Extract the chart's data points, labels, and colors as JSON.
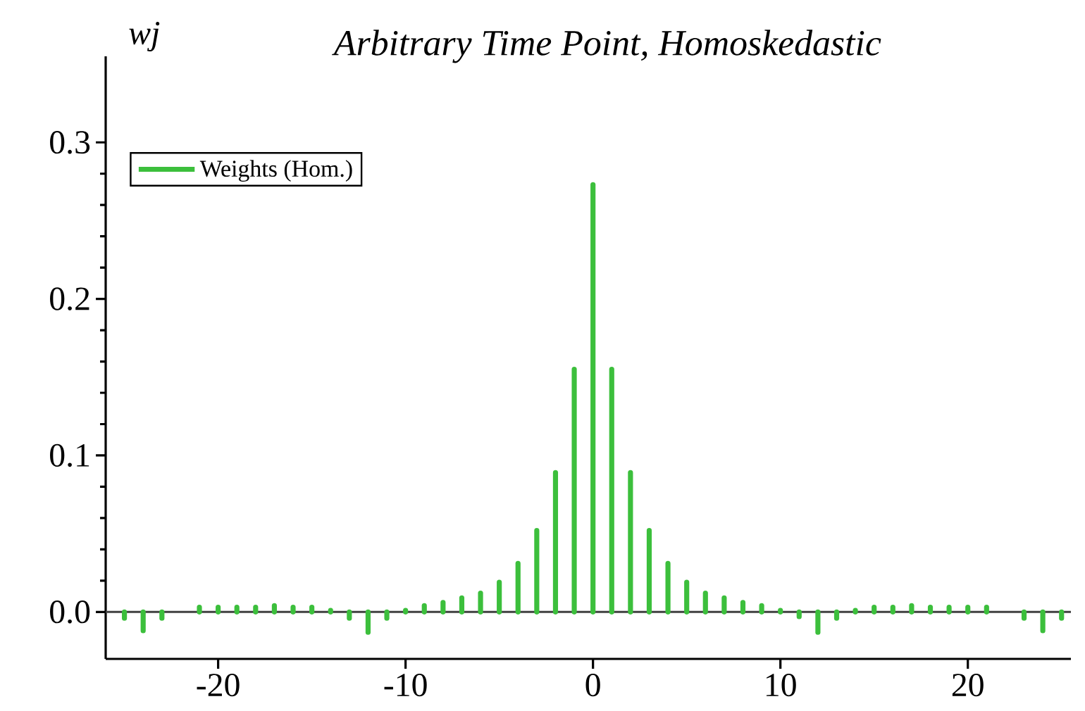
{
  "chart_data": {
    "type": "bar",
    "title": "Arbitrary Time Point, Homoskedastic",
    "ylabel": "wj",
    "x": [
      -25,
      -24,
      -23,
      -22,
      -21,
      -20,
      -19,
      -18,
      -17,
      -16,
      -15,
      -14,
      -13,
      -12,
      -11,
      -10,
      -9,
      -8,
      -7,
      -6,
      -5,
      -4,
      -3,
      -2,
      -1,
      0,
      1,
      2,
      3,
      4,
      5,
      6,
      7,
      8,
      9,
      10,
      11,
      12,
      13,
      14,
      15,
      16,
      17,
      18,
      19,
      20,
      21,
      22,
      23,
      24,
      25
    ],
    "series": [
      {
        "name": "Weights (Hom.)",
        "color": "#3cbf3c",
        "values": [
          -0.004,
          -0.012,
          -0.004,
          null,
          0.003,
          0.003,
          0.003,
          0.003,
          0.004,
          0.003,
          0.003,
          0.001,
          -0.004,
          -0.013,
          -0.004,
          0.001,
          0.004,
          0.006,
          0.009,
          0.012,
          0.019,
          0.031,
          0.052,
          0.089,
          0.155,
          0.273,
          0.155,
          0.089,
          0.052,
          0.031,
          0.019,
          0.012,
          0.009,
          0.006,
          0.004,
          0.001,
          -0.003,
          -0.013,
          -0.004,
          0.001,
          0.003,
          0.003,
          0.004,
          0.003,
          0.003,
          0.003,
          0.003,
          null,
          -0.004,
          -0.012,
          -0.004
        ]
      }
    ],
    "xlim": [
      -26,
      25.5
    ],
    "ylim": [
      -0.03,
      0.355
    ],
    "xticks": [
      -20,
      -10,
      0,
      10,
      20
    ],
    "yticks": [
      {
        "value": 0,
        "label": "0.0"
      },
      0.1,
      0.2,
      0.3
    ],
    "ref_lines": [
      {
        "axis": "y",
        "value": 0,
        "color": "#404040"
      }
    ],
    "legend": "top left"
  }
}
